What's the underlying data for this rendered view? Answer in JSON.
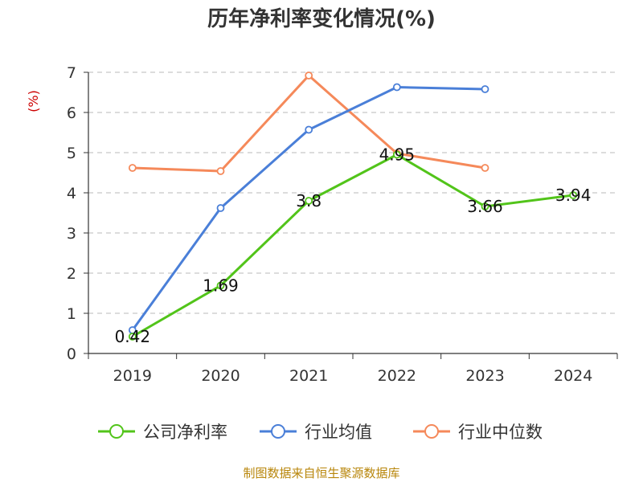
{
  "chart_data": {
    "type": "line",
    "title": "历年净利率变化情况(%)",
    "ylabel": "(%)",
    "xlabel": "",
    "categories": [
      "2019",
      "2020",
      "2021",
      "2022",
      "2023",
      "2024"
    ],
    "ylim": [
      0,
      7
    ],
    "yticks": [
      0,
      1,
      2,
      3,
      4,
      5,
      6,
      7
    ],
    "grid": true,
    "legend_position": "bottom",
    "series": [
      {
        "name": "公司净利率",
        "color": "#52c41a",
        "values": [
          0.42,
          1.69,
          3.8,
          4.95,
          3.66,
          3.94
        ],
        "show_labels": true
      },
      {
        "name": "行业均值",
        "color": "#4a7fd8",
        "values": [
          0.58,
          3.62,
          5.57,
          6.63,
          6.58,
          null
        ],
        "show_labels": false
      },
      {
        "name": "行业中位数",
        "color": "#f5895a",
        "values": [
          4.62,
          4.54,
          6.92,
          4.98,
          4.62,
          null
        ],
        "show_labels": false
      }
    ],
    "data_labels": [
      "0.42",
      "1.69",
      "3.8",
      "4.95",
      "3.66",
      "3.94"
    ],
    "unit_color": "#cc0000"
  },
  "source": {
    "text": "制图数据来自恒生聚源数据库",
    "color": "#b8860b"
  }
}
